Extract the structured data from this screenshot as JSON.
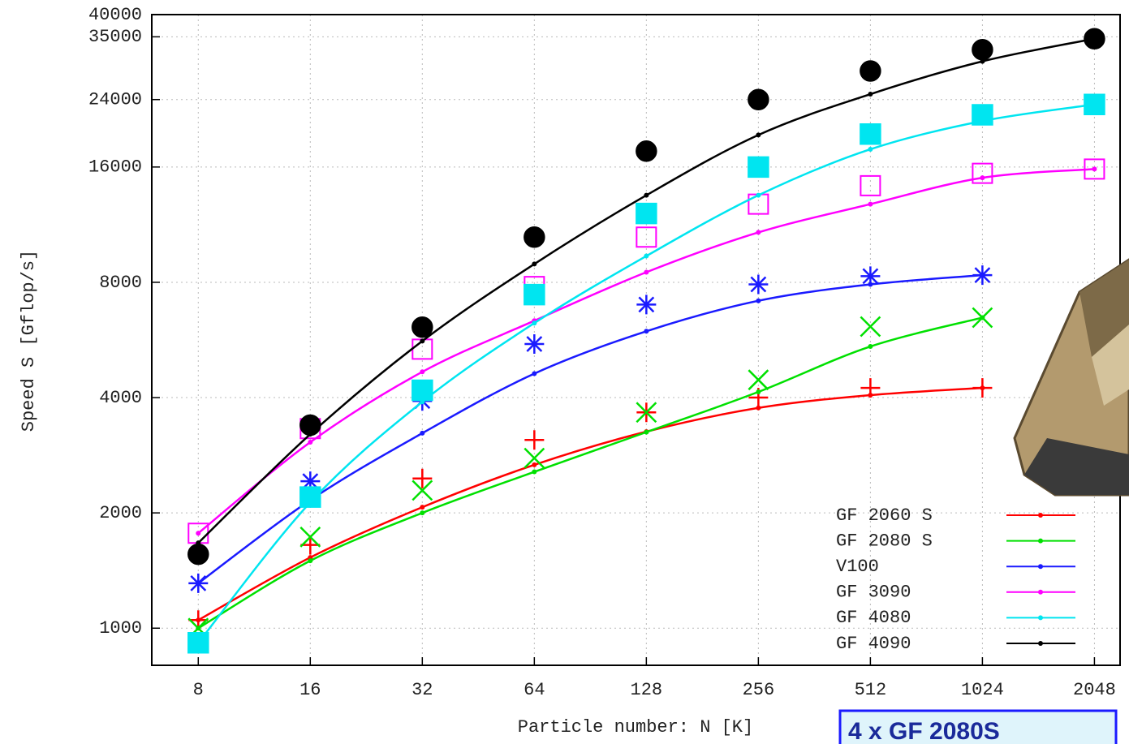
{
  "chart_data": {
    "type": "line",
    "xlabel": "Particle number: N [K]",
    "ylabel": "Speed S [Gflop/s]",
    "annotation": "4 x GF 2080S",
    "log_x": true,
    "log_y": true,
    "grid": true,
    "legend": "lower right",
    "x": [
      8,
      16,
      32,
      64,
      128,
      256,
      512,
      1024,
      2048
    ],
    "xlim": [
      6,
      2400
    ],
    "xticks": [
      8,
      16,
      32,
      64,
      128,
      256,
      512,
      1024,
      2048
    ],
    "ylim": [
      800,
      40000
    ],
    "yticks": [
      1000,
      2000,
      4000,
      8000,
      16000,
      24000,
      35000,
      40000
    ],
    "series": [
      {
        "name": "GF 2060 S",
        "color": "#ff0000",
        "marker": "plus",
        "values": [
          1050,
          1650,
          2460,
          3100,
          3660,
          4000,
          4240,
          4240,
          null
        ],
        "fit": [
          1050,
          1530,
          2070,
          2670,
          3260,
          3760,
          4060,
          4240,
          null
        ]
      },
      {
        "name": "GF 2080 S",
        "color": "#00e000",
        "marker": "cross",
        "values": [
          1000,
          1730,
          2290,
          2780,
          3660,
          4450,
          6130,
          6470,
          null
        ],
        "fit": [
          1000,
          1500,
          2000,
          2560,
          3250,
          4140,
          5440,
          6470,
          null
        ]
      },
      {
        "name": "V100",
        "color": "#1a1aff",
        "marker": "star",
        "values": [
          1310,
          2420,
          3920,
          5520,
          7000,
          7900,
          8300,
          8350,
          null
        ],
        "fit": [
          1310,
          2160,
          3230,
          4620,
          5960,
          7160,
          7900,
          8350,
          null
        ]
      },
      {
        "name": "GF 3090",
        "color": "#ff00ff",
        "marker": "open-square",
        "values": [
          1770,
          3320,
          5350,
          7800,
          10500,
          12800,
          14300,
          15400,
          15800
        ],
        "fit": [
          1770,
          3060,
          4670,
          6350,
          8500,
          10800,
          12800,
          15000,
          15800
        ]
      },
      {
        "name": "GF 4080",
        "color": "#00e5f0",
        "marker": "filled-square",
        "values": [
          916,
          2200,
          4180,
          7430,
          12100,
          16000,
          19500,
          21900,
          23300
        ],
        "fit": [
          916,
          2130,
          3900,
          6260,
          9370,
          13500,
          17800,
          21100,
          23300
        ]
      },
      {
        "name": "GF 4090",
        "color": "#000000",
        "marker": "circle",
        "values": [
          1560,
          3390,
          6110,
          10500,
          17600,
          24000,
          28500,
          32400,
          34600
        ],
        "fit": [
          1670,
          3210,
          5620,
          8930,
          13500,
          19400,
          24800,
          30200,
          34600
        ]
      }
    ]
  }
}
